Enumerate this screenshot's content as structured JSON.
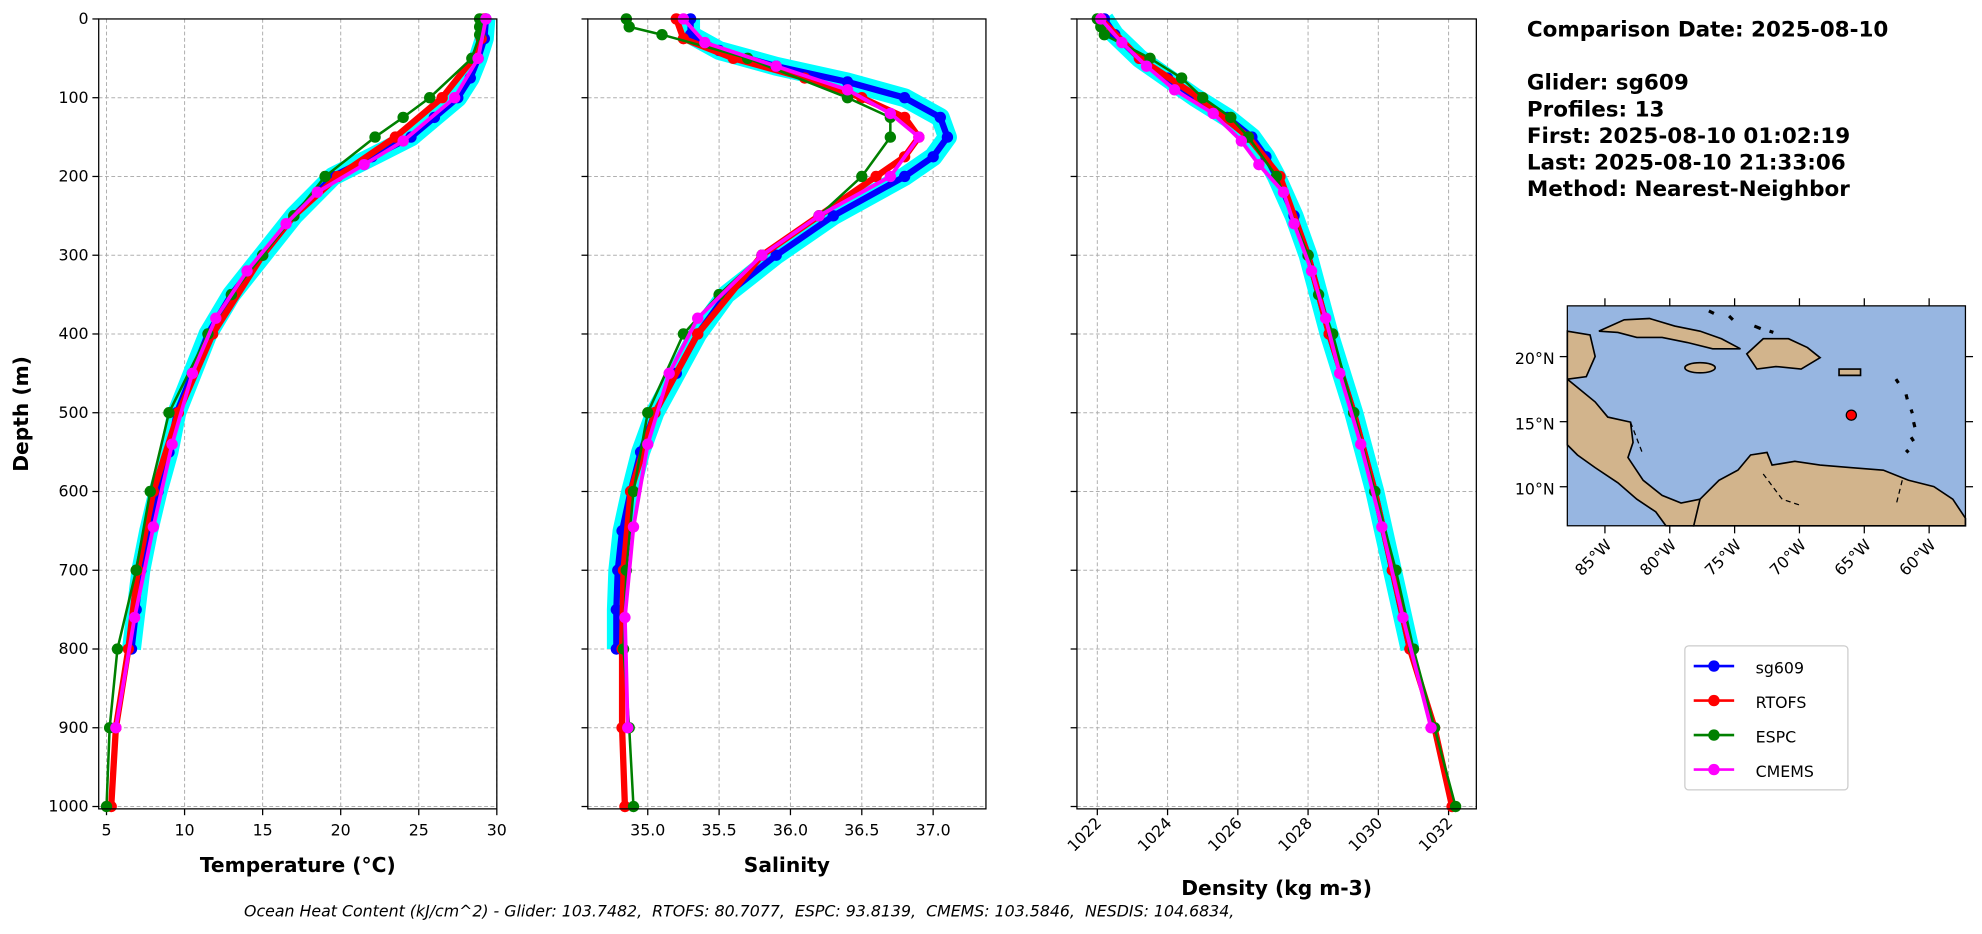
{
  "chart_data": [
    {
      "type": "line",
      "xlabel": "Temperature (°C)",
      "ylabel": "Depth (m)",
      "xlim": [
        4.5,
        30
      ],
      "xticks": [
        5,
        10,
        15,
        20,
        25,
        30
      ],
      "ylim": [
        1003,
        0
      ],
      "yticks": [
        0,
        100,
        200,
        300,
        400,
        500,
        600,
        700,
        800,
        900,
        1000
      ],
      "grid": true,
      "legend": "outside right",
      "series": [
        {
          "name": "sg609",
          "color": "#0000ff",
          "halo_color": "#00ffff",
          "linewidth": 5,
          "y": [
            0,
            25,
            50,
            75,
            100,
            125,
            150,
            175,
            200,
            250,
            300,
            350,
            400,
            450,
            500,
            550,
            600,
            650,
            700,
            750,
            800
          ],
          "values": [
            29.3,
            29.2,
            28.8,
            28.3,
            27.5,
            26,
            24.5,
            22,
            19.5,
            17,
            15,
            13,
            11.5,
            10.5,
            9.5,
            9,
            8.3,
            7.7,
            7.2,
            6.9,
            6.6
          ]
        },
        {
          "name": "RTOFS",
          "color": "#ff0000",
          "linewidth": 5,
          "y": [
            0,
            25,
            50,
            100,
            150,
            200,
            250,
            300,
            400,
            500,
            600,
            700,
            800,
            900,
            1000
          ],
          "values": [
            29.2,
            29,
            28.5,
            26.5,
            23.5,
            19.8,
            17,
            15,
            11.8,
            9.6,
            8,
            7,
            6.4,
            5.6,
            5.3
          ]
        },
        {
          "name": "ESPC",
          "color": "#008000",
          "linewidth": 2,
          "y": [
            0,
            10,
            20,
            50,
            100,
            125,
            150,
            200,
            250,
            300,
            350,
            400,
            500,
            600,
            700,
            800,
            900,
            1000
          ],
          "values": [
            28.9,
            28.9,
            28.9,
            28.4,
            25.7,
            24,
            22.2,
            19,
            17,
            15,
            13,
            11.5,
            9,
            7.8,
            6.9,
            5.7,
            5.2,
            5.0
          ]
        },
        {
          "name": "CMEMS",
          "color": "#ff00ff",
          "linewidth": 3,
          "y": [
            0,
            50,
            100,
            155,
            185,
            220,
            260,
            320,
            380,
            450,
            540,
            645,
            760,
            900
          ],
          "values": [
            29.3,
            28.8,
            27.3,
            24,
            21.5,
            18.5,
            16.5,
            14,
            12,
            10.5,
            9.2,
            8,
            6.8,
            5.6
          ]
        }
      ]
    },
    {
      "type": "line",
      "xlabel": "Salinity",
      "sharey": true,
      "xlim": [
        34.58,
        37.37
      ],
      "xticks": [
        {
          "value": 35,
          "label": "35.0"
        },
        35.5,
        {
          "value": 36,
          "label": "36.0"
        },
        36.5,
        {
          "value": 37,
          "label": "37.0"
        }
      ],
      "ylim": [
        1003,
        0
      ],
      "grid": true,
      "series": [
        {
          "name": "sg609",
          "color": "#0000ff",
          "halo_color": "#00ffff",
          "linewidth": 5,
          "y": [
            0,
            20,
            40,
            60,
            80,
            100,
            125,
            150,
            175,
            200,
            250,
            300,
            350,
            400,
            450,
            500,
            550,
            600,
            650,
            700,
            750,
            800
          ],
          "values": [
            35.3,
            35.3,
            35.5,
            35.9,
            36.4,
            36.8,
            37.05,
            37.1,
            37.0,
            36.8,
            36.3,
            35.9,
            35.55,
            35.35,
            35.2,
            35.05,
            34.95,
            34.88,
            34.82,
            34.79,
            34.78,
            34.78
          ]
        },
        {
          "name": "RTOFS",
          "color": "#ff0000",
          "linewidth": 5,
          "y": [
            0,
            25,
            50,
            75,
            100,
            125,
            150,
            175,
            200,
            250,
            300,
            400,
            500,
            600,
            700,
            800,
            900,
            1000
          ],
          "values": [
            35.2,
            35.25,
            35.6,
            36.1,
            36.5,
            36.8,
            36.9,
            36.8,
            36.6,
            36.2,
            35.8,
            35.35,
            35.05,
            34.88,
            34.83,
            34.82,
            34.82,
            34.84
          ]
        },
        {
          "name": "ESPC",
          "color": "#008000",
          "linewidth": 2,
          "y": [
            0,
            10,
            20,
            50,
            100,
            125,
            150,
            200,
            250,
            300,
            350,
            400,
            500,
            600,
            700,
            800,
            900,
            1000
          ],
          "values": [
            34.85,
            34.87,
            35.1,
            35.7,
            36.4,
            36.7,
            36.7,
            36.5,
            36.2,
            35.8,
            35.5,
            35.25,
            35.0,
            34.9,
            34.85,
            34.83,
            34.87,
            34.9
          ]
        },
        {
          "name": "CMEMS",
          "color": "#ff00ff",
          "linewidth": 3,
          "y": [
            0,
            30,
            60,
            90,
            120,
            150,
            200,
            250,
            300,
            380,
            450,
            540,
            645,
            760,
            900
          ],
          "values": [
            35.25,
            35.4,
            35.9,
            36.4,
            36.7,
            36.9,
            36.7,
            36.2,
            35.8,
            35.35,
            35.15,
            35.0,
            34.9,
            34.84,
            34.86
          ]
        }
      ]
    },
    {
      "type": "line",
      "xlabel": "Density (kg m-3)",
      "sharey": true,
      "xtick_rotation": 45,
      "xlim": [
        1021.42,
        1032.79
      ],
      "xticks": [
        1022,
        1024,
        1026,
        1028,
        1030,
        1032
      ],
      "ylim": [
        1003,
        0
      ],
      "grid": true,
      "series": [
        {
          "name": "sg609",
          "color": "#0000ff",
          "halo_color": "#00ffff",
          "linewidth": 5,
          "y": [
            0,
            20,
            50,
            75,
            100,
            125,
            150,
            175,
            200,
            250,
            300,
            400,
            500,
            600,
            700,
            800
          ],
          "values": [
            1022.2,
            1022.5,
            1023.2,
            1024,
            1024.8,
            1025.7,
            1026.4,
            1026.8,
            1027.1,
            1027.6,
            1028.0,
            1028.6,
            1029.3,
            1029.9,
            1030.4,
            1030.9
          ]
        },
        {
          "name": "RTOFS",
          "color": "#ff0000",
          "linewidth": 5,
          "y": [
            0,
            50,
            100,
            150,
            200,
            300,
            400,
            500,
            600,
            700,
            800,
            900,
            1000
          ],
          "values": [
            1022.1,
            1023.2,
            1024.9,
            1026.3,
            1027.2,
            1028.0,
            1028.6,
            1029.3,
            1029.9,
            1030.4,
            1030.9,
            1031.6,
            1032.1
          ]
        },
        {
          "name": "ESPC",
          "color": "#008000",
          "linewidth": 2,
          "y": [
            0,
            10,
            20,
            50,
            75,
            100,
            125,
            150,
            200,
            300,
            350,
            400,
            500,
            600,
            700,
            800,
            900,
            1000
          ],
          "values": [
            1022,
            1022.1,
            1022.2,
            1023.5,
            1024.4,
            1025.0,
            1025.8,
            1026.3,
            1027.1,
            1028,
            1028.3,
            1028.7,
            1029.3,
            1029.9,
            1030.5,
            1031.0,
            1031.6,
            1032.2
          ]
        },
        {
          "name": "CMEMS",
          "color": "#ff00ff",
          "linewidth": 3,
          "y": [
            0,
            30,
            60,
            90,
            120,
            155,
            185,
            220,
            260,
            320,
            380,
            450,
            540,
            645,
            760,
            900
          ],
          "values": [
            1022.1,
            1022.7,
            1023.4,
            1024.2,
            1025.3,
            1026.1,
            1026.6,
            1027.3,
            1027.6,
            1028.1,
            1028.5,
            1028.9,
            1029.5,
            1030.1,
            1030.7,
            1031.5
          ]
        }
      ]
    },
    {
      "type": "map",
      "xlim": [
        -87.9,
        -57.2
      ],
      "ylim": [
        7,
        23.9
      ],
      "xticks": [
        {
          "value": -85,
          "label": "85°W"
        },
        {
          "value": -80,
          "label": "80°W"
        },
        {
          "value": -75,
          "label": "75°W"
        },
        {
          "value": -70,
          "label": "70°W"
        },
        {
          "value": -65,
          "label": "65°W"
        },
        {
          "value": -60,
          "label": "60°W"
        }
      ],
      "yticks": [
        {
          "value": 10,
          "label": "10°N"
        },
        {
          "value": 15,
          "label": "15°N"
        },
        {
          "value": 20,
          "label": "20°N"
        }
      ],
      "points": {
        "x": [
          -66
        ],
        "y": [
          15.5
        ],
        "color": "#ff0000"
      }
    }
  ],
  "info_lines": [
    "Comparison Date: 2025-08-10",
    "Glider: sg609",
    "Profiles: 13",
    "First: 2025-08-10 01:02:19",
    "Last: 2025-08-10 21:33:06",
    "Method: Nearest-Neighbor"
  ],
  "footer": "Ocean Heat Content (kJ/cm^2) - Glider: 103.7482,  RTOFS: 80.7077,  ESPC: 93.8139,  CMEMS: 103.5846,  NESDIS: 104.6834,"
}
